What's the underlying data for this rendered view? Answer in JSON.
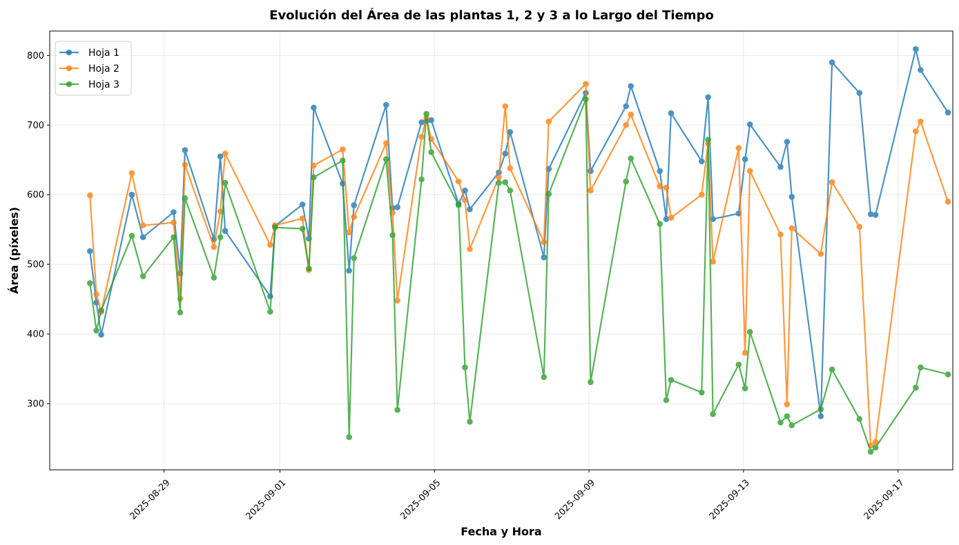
{
  "chart_data": {
    "type": "line",
    "title": "Evolución del Área de las plantas 1, 2 y 3 a lo Largo del Tiempo",
    "xlabel": "Fecha y Hora",
    "ylabel": "Área (píxeles)",
    "xlim": [
      "2025-08-26T01:00",
      "2025-09-18T10:00"
    ],
    "ylim": [
      205,
      835
    ],
    "x_ticks": [
      "2025-08-29",
      "2025-09-01",
      "2025-09-05",
      "2025-09-09",
      "2025-09-13",
      "2025-09-17"
    ],
    "y_ticks": [
      300,
      400,
      500,
      600,
      700,
      800
    ],
    "grid": true,
    "legend_position": "top-left",
    "x": [
      "2025-08-27T02:00",
      "2025-08-27T06:00",
      "2025-08-27T09:00",
      "2025-08-28T04:00",
      "2025-08-28T11:00",
      "2025-08-29T06:00",
      "2025-08-29T10:00",
      "2025-08-29T13:00",
      "2025-08-30T07:00",
      "2025-08-30T11:00",
      "2025-08-30T14:00",
      "2025-08-31T18:00",
      "2025-08-31T21:00",
      "2025-09-01T14:00",
      "2025-09-01T18:00",
      "2025-09-01T21:00",
      "2025-09-02T15:00",
      "2025-09-02T19:00",
      "2025-09-02T22:00",
      "2025-09-03T18:00",
      "2025-09-03T22:00",
      "2025-09-04T01:00",
      "2025-09-04T16:00",
      "2025-09-04T19:00",
      "2025-09-04T22:00",
      "2025-09-05T15:00",
      "2025-09-05T19:00",
      "2025-09-05T22:00",
      "2025-09-06T16:00",
      "2025-09-06T20:00",
      "2025-09-06T23:00",
      "2025-09-07T20:00",
      "2025-09-07T23:00",
      "2025-09-08T22:00",
      "2025-09-09T01:00",
      "2025-09-09T23:00",
      "2025-09-10T02:00",
      "2025-09-10T20:00",
      "2025-09-11T00:00",
      "2025-09-11T03:00",
      "2025-09-11T22:00",
      "2025-09-12T02:00",
      "2025-09-12T05:00",
      "2025-09-12T21:00",
      "2025-09-13T01:00",
      "2025-09-13T04:00",
      "2025-09-13T23:00",
      "2025-09-14T03:00",
      "2025-09-14T06:00",
      "2025-09-15T00:00",
      "2025-09-15T07:00",
      "2025-09-16T00:00",
      "2025-09-16T07:00",
      "2025-09-16T10:00",
      "2025-09-17T11:00",
      "2025-09-17T14:00",
      "2025-09-18T07:00"
    ],
    "series": [
      {
        "name": "Hoja 1",
        "color": "#1f77b4",
        "values": [
          519,
          445,
          399,
          600,
          539,
          575,
          487,
          664,
          536,
          655,
          548,
          454,
          555,
          586,
          537,
          725,
          616,
          491,
          585,
          729,
          581,
          582,
          704,
          706,
          707,
          587,
          606,
          579,
          632,
          659,
          690,
          510,
          637,
          746,
          634,
          727,
          756,
          634,
          565,
          717,
          648,
          740,
          565,
          573,
          651,
          701,
          640,
          676,
          597,
          282,
          790,
          746,
          572,
          571,
          809,
          779,
          718
        ]
      },
      {
        "name": "Hoja 2",
        "color": "#ff7f0e",
        "values": [
          599,
          457,
          432,
          631,
          556,
          560,
          451,
          643,
          525,
          576,
          659,
          528,
          556,
          566,
          492,
          642,
          665,
          546,
          568,
          674,
          574,
          448,
          683,
          710,
          680,
          619,
          592,
          522,
          625,
          727,
          638,
          532,
          705,
          759,
          606,
          700,
          715,
          612,
          610,
          567,
          600,
          673,
          504,
          667,
          373,
          634,
          543,
          299,
          552,
          515,
          618,
          554,
          240,
          245,
          691,
          705,
          590
        ]
      },
      {
        "name": "Hoja 3",
        "color": "#2ca02c",
        "values": [
          473,
          405,
          434,
          541,
          483,
          539,
          431,
          595,
          481,
          539,
          617,
          432,
          553,
          551,
          494,
          625,
          649,
          252,
          509,
          651,
          542,
          291,
          622,
          716,
          661,
          585,
          352,
          274,
          617,
          618,
          606,
          338,
          601,
          737,
          331,
          619,
          652,
          558,
          305,
          334,
          316,
          679,
          285,
          356,
          322,
          403,
          273,
          282,
          269,
          292,
          349,
          278,
          231,
          237,
          323,
          352,
          342
        ]
      }
    ]
  }
}
